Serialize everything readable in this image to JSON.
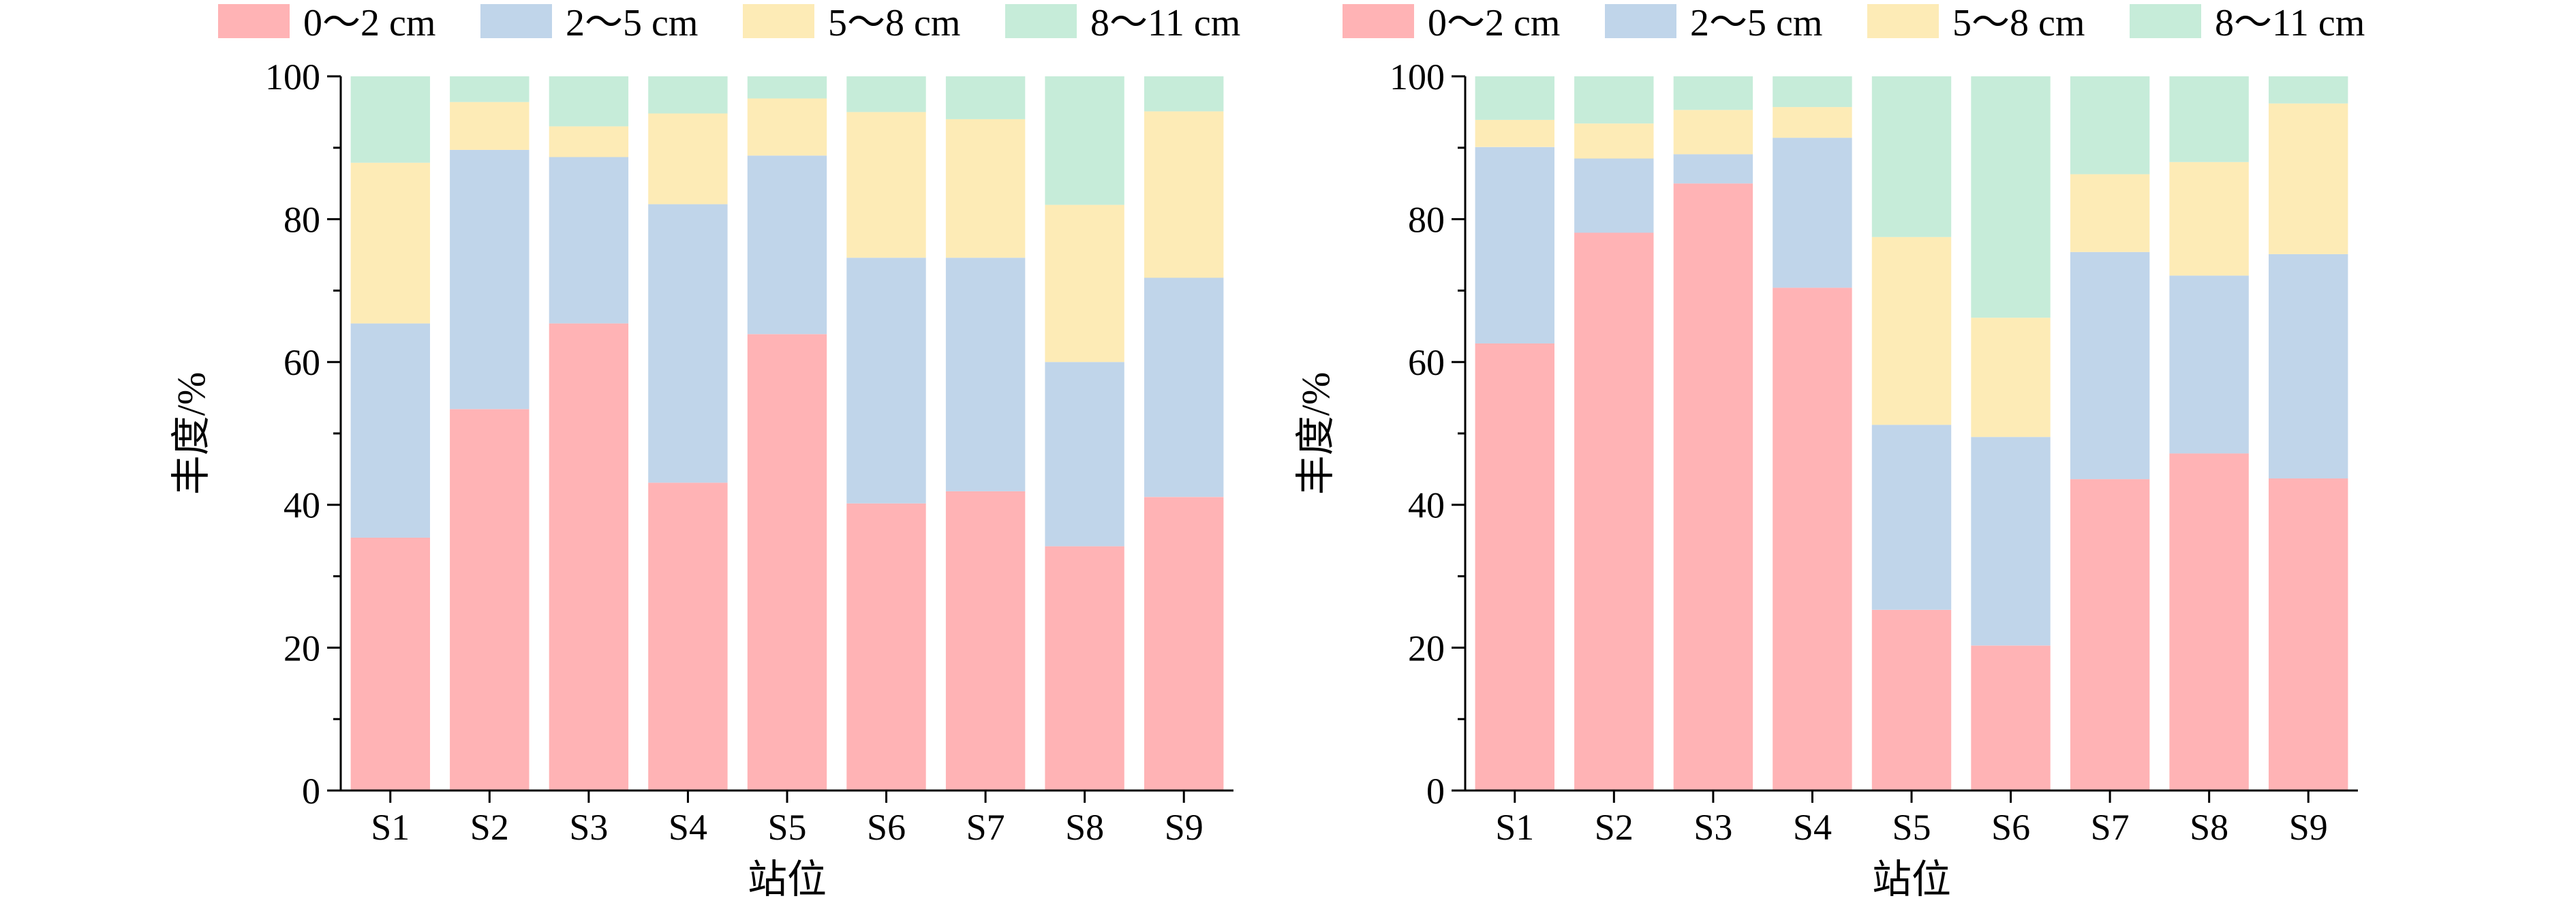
{
  "chart_data": [
    {
      "type": "bar",
      "stacked": true,
      "categories": [
        "S1",
        "S2",
        "S3",
        "S4",
        "S5",
        "S6",
        "S7",
        "S8",
        "S9"
      ],
      "series": [
        {
          "name": "0～2 cm",
          "values": [
            35.4,
            53.4,
            65.4,
            43.1,
            63.9,
            40.2,
            41.9,
            34.2,
            41.1
          ],
          "color": "#ffb3b5"
        },
        {
          "name": "2～5 cm",
          "values": [
            30.0,
            36.3,
            23.3,
            39.0,
            25.0,
            34.4,
            32.7,
            25.8,
            30.7
          ],
          "color": "#c0d5ea"
        },
        {
          "name": "5～8 cm",
          "values": [
            22.5,
            6.7,
            4.3,
            12.7,
            8.0,
            20.4,
            19.4,
            22.0,
            23.3
          ],
          "color": "#fdebb6"
        },
        {
          "name": "8～11 cm",
          "values": [
            12.1,
            3.6,
            7.0,
            5.2,
            3.1,
            5.0,
            6.0,
            18.0,
            4.9
          ],
          "color": "#c6ecd9"
        }
      ],
      "xlabel": "站位",
      "ylabel": "丰度/%",
      "ylim": [
        0,
        100
      ],
      "yticks": [
        0,
        20,
        40,
        60,
        80,
        100
      ],
      "grid": false,
      "legend": "top"
    },
    {
      "type": "bar",
      "stacked": true,
      "categories": [
        "S1",
        "S2",
        "S3",
        "S4",
        "S5",
        "S6",
        "S7",
        "S8",
        "S9"
      ],
      "series": [
        {
          "name": "0～2 cm",
          "values": [
            62.6,
            78.1,
            85.0,
            70.4,
            25.3,
            20.3,
            43.6,
            47.2,
            43.7
          ],
          "color": "#ffb3b5"
        },
        {
          "name": "2～5 cm",
          "values": [
            27.5,
            10.4,
            4.1,
            21.0,
            25.9,
            29.2,
            31.8,
            24.9,
            31.4
          ],
          "color": "#c0d5ea"
        },
        {
          "name": "5～8 cm",
          "values": [
            3.8,
            4.9,
            6.2,
            4.3,
            26.3,
            16.7,
            10.9,
            15.9,
            21.1
          ],
          "color": "#fdebb6"
        },
        {
          "name": "8～11 cm",
          "values": [
            6.1,
            6.6,
            4.7,
            4.3,
            22.5,
            33.8,
            13.7,
            12.0,
            3.8
          ],
          "color": "#c6ecd9"
        }
      ],
      "xlabel": "站位",
      "ylabel": "丰度/%",
      "ylim": [
        0,
        100
      ],
      "yticks": [
        0,
        20,
        40,
        60,
        80,
        100
      ],
      "grid": false,
      "legend": "top"
    }
  ]
}
